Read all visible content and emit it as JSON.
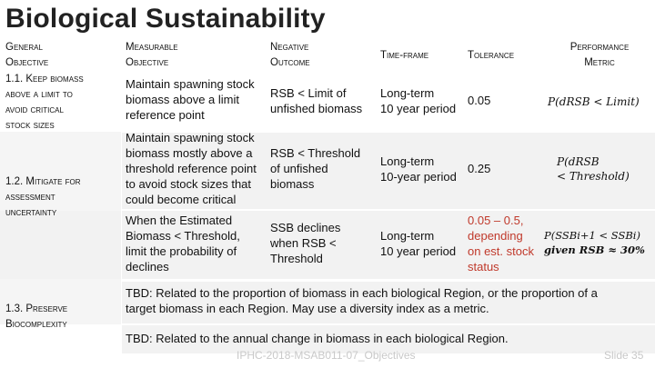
{
  "title": "Biological Sustainability",
  "headers": {
    "general_objective": [
      "General",
      "Objective"
    ],
    "measurable_objective": [
      "Measurable",
      "Objective"
    ],
    "negative_outcome": [
      "Negative",
      "Outcome"
    ],
    "time_frame": "Time-frame",
    "tolerance": "Tolerance",
    "performance_metric": [
      "Performance",
      "Metric"
    ]
  },
  "goals": {
    "g1": [
      "1.1. Keep biomass",
      "above a limit to",
      "avoid critical",
      "stock sizes"
    ],
    "g2": [
      "1.2. Mitigate for",
      "assessment",
      "uncertainty"
    ],
    "g3": [
      "1.3. Preserve",
      "Biocomplexity"
    ]
  },
  "rows": [
    {
      "measurable": [
        "Maintain spawning stock",
        "biomass above a limit",
        "reference point"
      ],
      "negative": [
        "RSB < Limit of",
        "unfished biomass"
      ],
      "timeframe": [
        "Long-term",
        "10 year period"
      ],
      "tolerance": [
        "0.05"
      ],
      "metric": [
        "P(dRSB < Limit)"
      ]
    },
    {
      "measurable": [
        "Maintain spawning stock",
        "biomass mostly above a",
        "threshold reference point",
        "to avoid stock sizes that",
        "could become critical"
      ],
      "negative": [
        "RSB < Threshold",
        "of unfished",
        "biomass"
      ],
      "timeframe": [
        "Long-term",
        "10-year period"
      ],
      "tolerance": [
        "0.25"
      ],
      "metric": [
        "P(dRSB",
        "< Threshold)"
      ]
    },
    {
      "measurable": [
        "When the Estimated",
        "Biomass < Threshold,",
        "limit the probability of",
        "declines"
      ],
      "negative": [
        "SSB declines",
        "when RSB <",
        "Threshold"
      ],
      "timeframe": [
        "Long-term",
        "10 year period"
      ],
      "tolerance": [
        "0.05 – 0.5,",
        "depending",
        "on est. stock",
        "status"
      ],
      "metric": [
        "P(SSBi+1 < SSBi)",
        "given RSB ≈ 30%"
      ]
    }
  ],
  "tbd": {
    "row4": [
      "TBD: Related to the proportion of biomass in each biological Region, or the proportion of a",
      "target biomass in each Region. May use a diversity index as a metric."
    ],
    "row5": "TBD: Related to the annual change in biomass in each biological Region."
  },
  "footer": "IPHC-2018-MSAB011-07_Objectives",
  "slide": "Slide 35",
  "colors": {
    "tolerance_row3": "#c0392b",
    "band": "#f2f2f2"
  }
}
